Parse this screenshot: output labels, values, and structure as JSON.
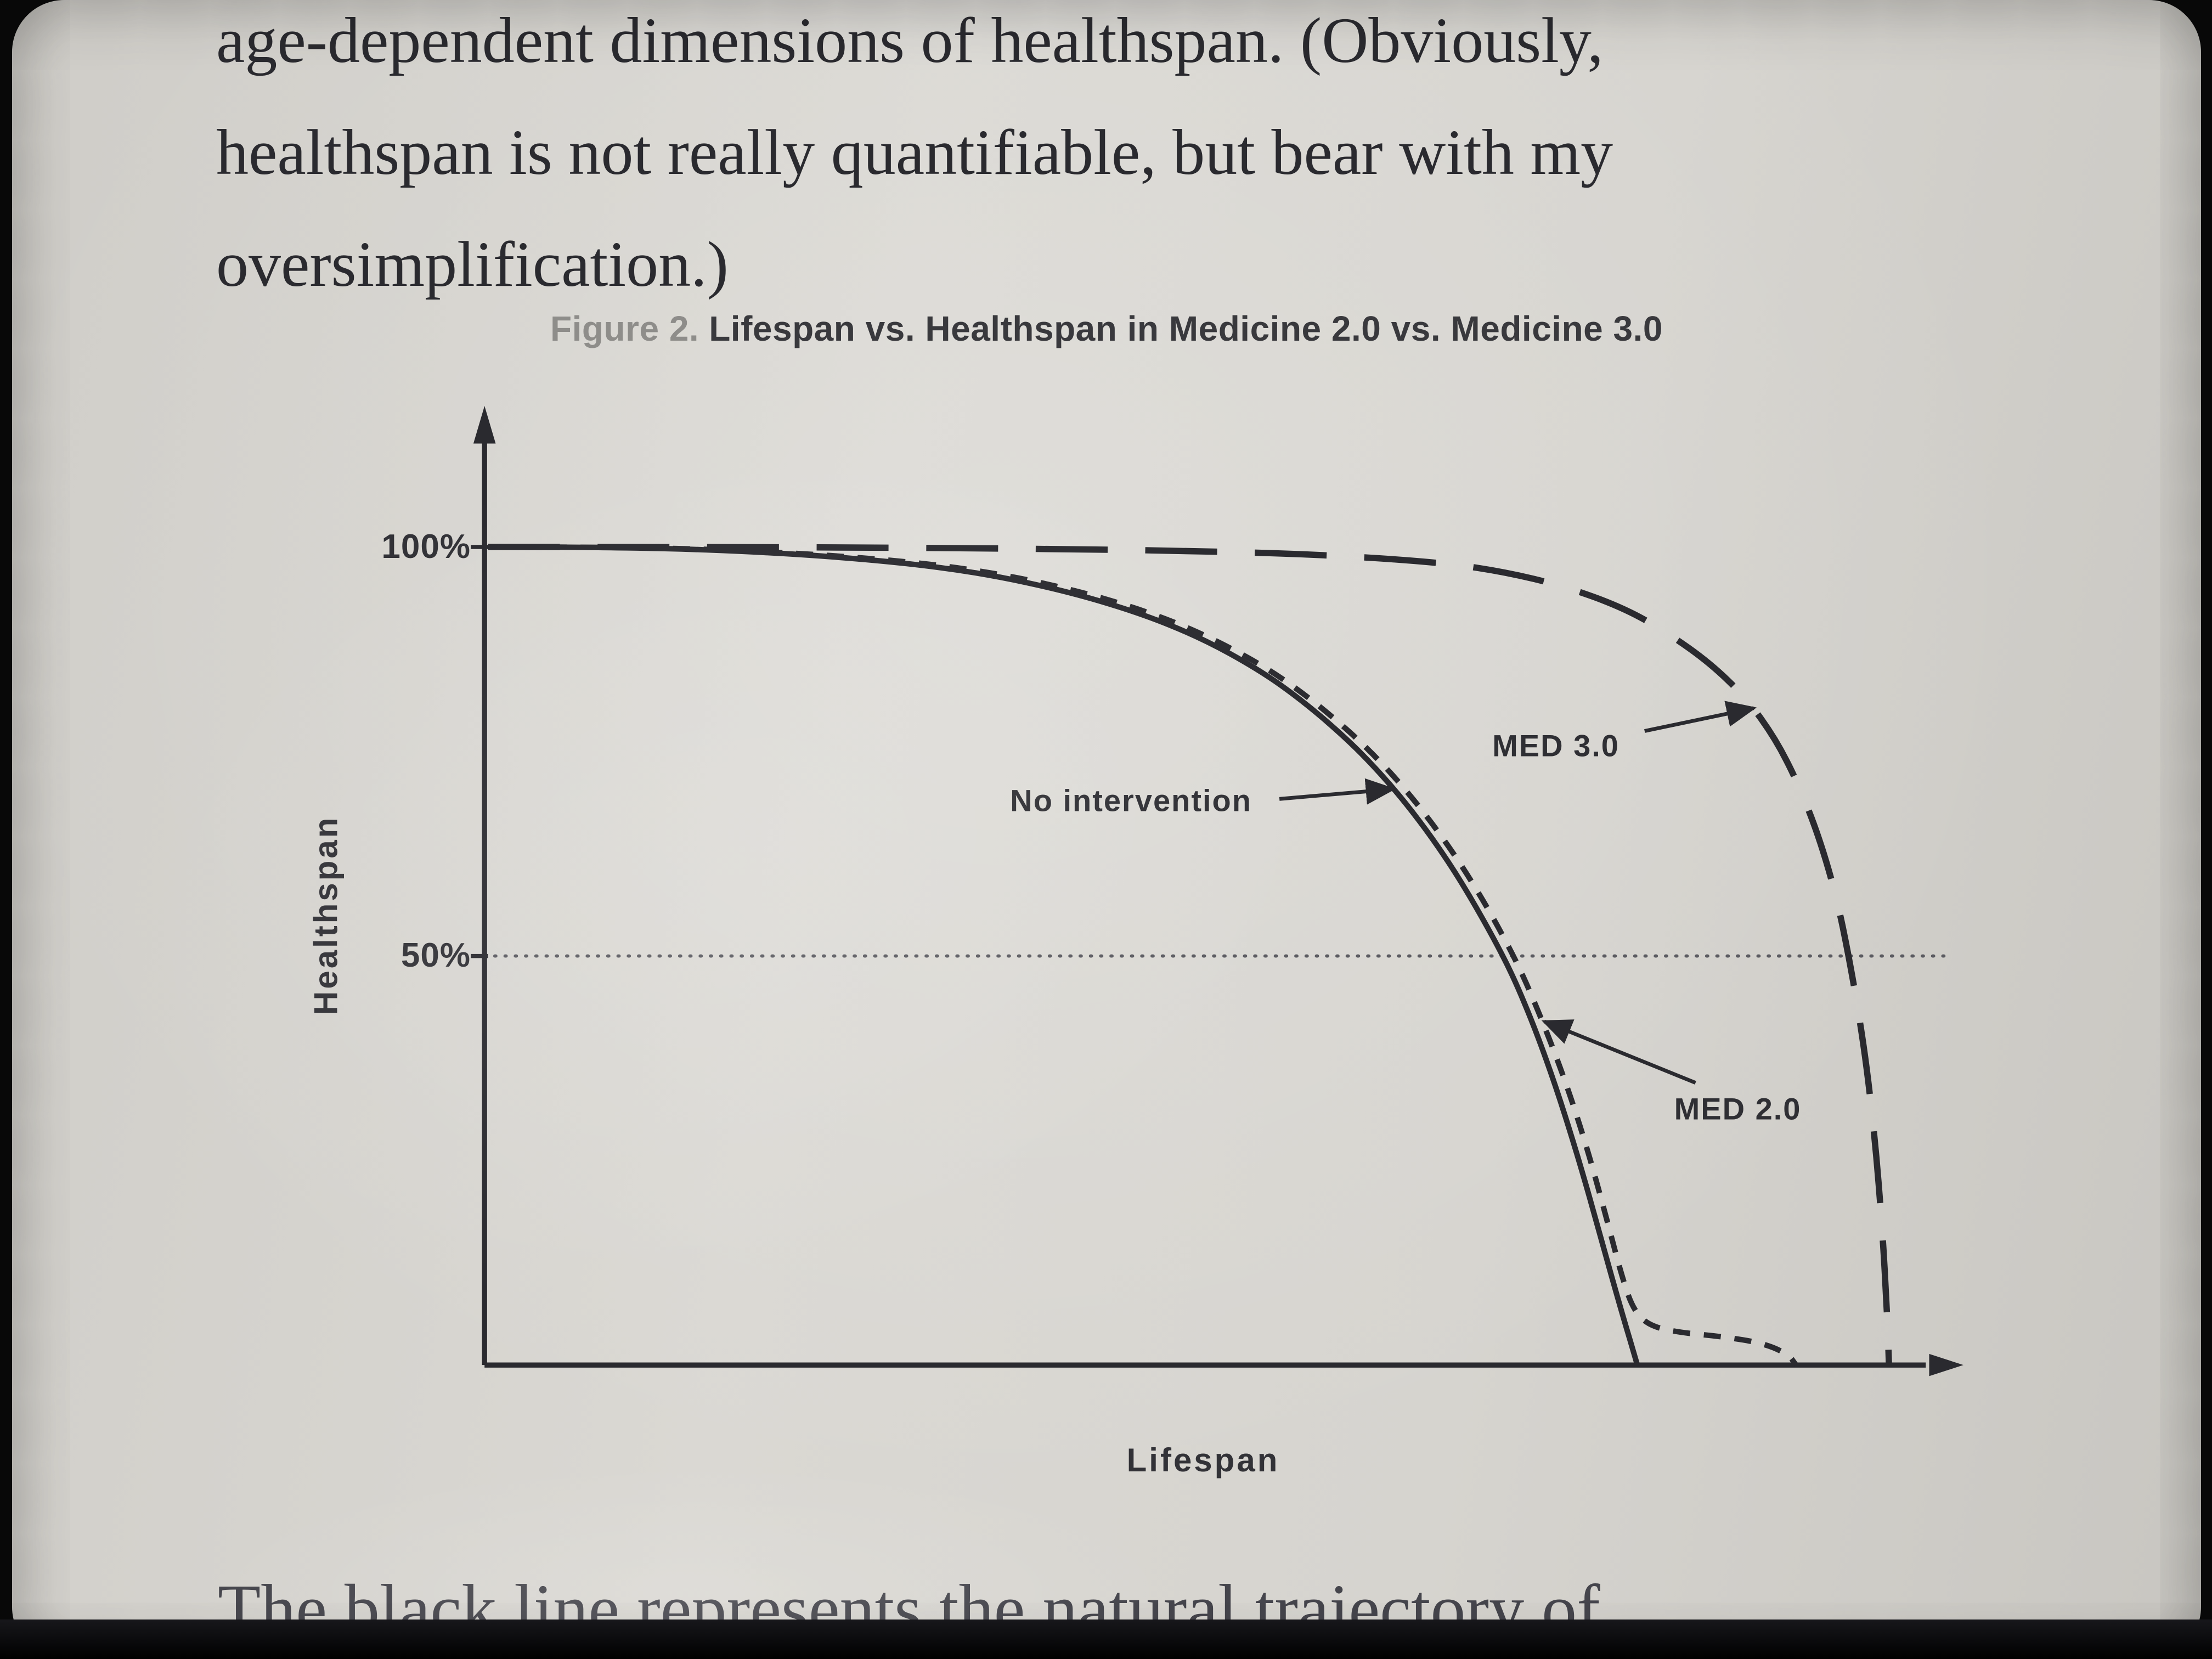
{
  "page_text": {
    "line1": "age-dependent dimensions of healthspan. (Obviously,",
    "line2": "healthspan is not really quantifiable, but bear with my",
    "line3": "oversimplification.)",
    "bottom_line": "The black line represents the natural trajectory of"
  },
  "figure": {
    "caption_prefix": "Figure 2.",
    "caption_title": "Lifespan vs. Healthspan in Medicine 2.0 vs. Medicine 3.0"
  },
  "colors": {
    "paper": "#d6d4cf",
    "ink": "#2a2a2f",
    "caption_gray": "#8e8d8a"
  },
  "chart_data": {
    "type": "line",
    "title": "Lifespan vs. Healthspan in Medicine 2.0 vs. Medicine 3.0",
    "xlabel": "Lifespan",
    "ylabel": "Healthspan",
    "x_range": [
      0,
      100
    ],
    "ylim": [
      0,
      100
    ],
    "grid": "50% dotted horizontal reference line only",
    "legend_position": "none (inline annotations with arrows)",
    "yticks": [
      {
        "value": 100,
        "label": "100%"
      },
      {
        "value": 50,
        "label": "50%"
      }
    ],
    "gridline": {
      "y": 50,
      "style": "dotted"
    },
    "series": [
      {
        "name": "No intervention",
        "style": "solid",
        "points": [
          [
            0,
            100
          ],
          [
            10,
            100
          ],
          [
            20,
            99.3
          ],
          [
            28,
            98.2
          ],
          [
            34,
            96.8
          ],
          [
            40,
            94.5
          ],
          [
            45,
            91.8
          ],
          [
            49,
            88.9
          ],
          [
            53,
            85
          ],
          [
            56,
            81.2
          ],
          [
            59,
            76.6
          ],
          [
            61,
            73
          ],
          [
            63,
            68.9
          ],
          [
            65,
            64.2
          ],
          [
            67,
            58.8
          ],
          [
            69,
            52.6
          ],
          [
            70.5,
            47.4
          ],
          [
            72,
            41
          ],
          [
            73.5,
            33.5
          ],
          [
            75,
            25
          ],
          [
            76.5,
            15.5
          ],
          [
            78,
            6
          ],
          [
            79,
            0
          ]
        ]
      },
      {
        "name": "MED 2.0",
        "style": "dashed-short",
        "points": [
          [
            0,
            100
          ],
          [
            10,
            100
          ],
          [
            20,
            99.4
          ],
          [
            28,
            98.4
          ],
          [
            34,
            97.1
          ],
          [
            40,
            94.9
          ],
          [
            45,
            92.3
          ],
          [
            49,
            89.5
          ],
          [
            53,
            85.8
          ],
          [
            56,
            82.2
          ],
          [
            59,
            77.8
          ],
          [
            61,
            74.4
          ],
          [
            63,
            70.5
          ],
          [
            65,
            66
          ],
          [
            67,
            60.9
          ],
          [
            69,
            55
          ],
          [
            70.8,
            49
          ],
          [
            72.4,
            42.4
          ],
          [
            74,
            35
          ],
          [
            75.5,
            26.8
          ],
          [
            76.8,
            18.5
          ],
          [
            77.9,
            11
          ],
          [
            78.7,
            6.8
          ],
          [
            79.8,
            4.8
          ],
          [
            81.8,
            4
          ],
          [
            84.8,
            3.5
          ],
          [
            87.6,
            2.7
          ],
          [
            89.4,
            1.3
          ],
          [
            89.9,
            0
          ]
        ]
      },
      {
        "name": "MED 3.0",
        "style": "dashed-long",
        "points": [
          [
            0,
            100
          ],
          [
            20,
            100
          ],
          [
            38,
            99.8
          ],
          [
            52,
            99.4
          ],
          [
            60,
            98.8
          ],
          [
            66,
            98
          ],
          [
            70,
            96.9
          ],
          [
            74,
            95.2
          ],
          [
            78,
            92.6
          ],
          [
            81,
            89.6
          ],
          [
            84,
            85.8
          ],
          [
            86.5,
            81.5
          ],
          [
            88.5,
            76.5
          ],
          [
            90,
            71.3
          ],
          [
            91.5,
            64.5
          ],
          [
            92.8,
            56.5
          ],
          [
            93.8,
            47.5
          ],
          [
            94.7,
            37.5
          ],
          [
            95.4,
            26.5
          ],
          [
            95.9,
            15
          ],
          [
            96.2,
            5
          ],
          [
            96.3,
            0
          ]
        ]
      }
    ],
    "annotations": [
      {
        "label": "No intervention",
        "label_pos": [
          44.2,
          69
        ],
        "arrow_from": [
          54.4,
          69.2
        ],
        "arrow_to": [
          62.2,
          70.4
        ]
      },
      {
        "label": "MED 3.0",
        "label_pos": [
          73.4,
          75.7
        ],
        "arrow_from": [
          79.5,
          77.5
        ],
        "arrow_to": [
          87,
          80.3
        ]
      },
      {
        "label": "MED 2.0",
        "label_pos": [
          85.9,
          31.3
        ],
        "arrow_from": [
          83,
          34.5
        ],
        "arrow_to": [
          72.6,
          42
        ]
      }
    ]
  }
}
